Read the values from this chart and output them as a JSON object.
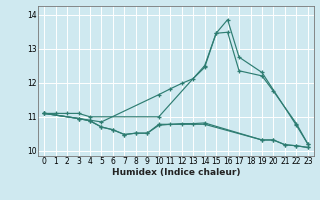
{
  "xlabel": "Humidex (Indice chaleur)",
  "ylabel": "",
  "bg_color": "#cfe9f0",
  "grid_color": "#ffffff",
  "line_color": "#2e7d72",
  "xlim": [
    -0.5,
    23.5
  ],
  "ylim": [
    9.85,
    14.25
  ],
  "yticks": [
    10,
    11,
    12,
    13,
    14
  ],
  "xticks": [
    0,
    1,
    2,
    3,
    4,
    5,
    6,
    7,
    8,
    9,
    10,
    11,
    12,
    13,
    14,
    15,
    16,
    17,
    18,
    19,
    20,
    21,
    22,
    23
  ],
  "curves": [
    {
      "x": [
        0,
        1,
        2,
        3,
        4,
        10,
        14,
        15,
        16,
        17,
        19,
        22,
        23
      ],
      "y": [
        11.1,
        11.1,
        11.1,
        11.1,
        11.0,
        11.0,
        12.5,
        13.45,
        13.85,
        12.75,
        12.3,
        10.75,
        10.2
      ]
    },
    {
      "x": [
        0,
        3,
        4,
        5,
        10,
        11,
        12,
        13,
        14,
        15,
        16,
        17,
        19,
        20,
        22,
        23
      ],
      "y": [
        11.1,
        10.95,
        10.9,
        10.85,
        11.65,
        11.82,
        11.98,
        12.12,
        12.45,
        13.45,
        13.48,
        12.35,
        12.2,
        11.75,
        10.8,
        10.2
      ]
    },
    {
      "x": [
        0,
        3,
        4,
        5,
        6,
        7,
        8,
        9,
        10,
        14,
        19,
        20,
        21,
        22,
        23
      ],
      "y": [
        11.1,
        10.95,
        10.88,
        10.7,
        10.62,
        10.48,
        10.52,
        10.52,
        10.78,
        10.78,
        10.32,
        10.32,
        10.18,
        10.15,
        10.1
      ]
    },
    {
      "x": [
        0,
        3,
        4,
        5,
        6,
        7,
        8,
        9,
        10,
        11,
        12,
        13,
        14,
        19,
        20,
        21,
        22,
        23
      ],
      "y": [
        11.1,
        10.95,
        10.88,
        10.7,
        10.62,
        10.48,
        10.52,
        10.52,
        10.75,
        10.78,
        10.8,
        10.8,
        10.82,
        10.32,
        10.32,
        10.18,
        10.15,
        10.1
      ]
    }
  ]
}
